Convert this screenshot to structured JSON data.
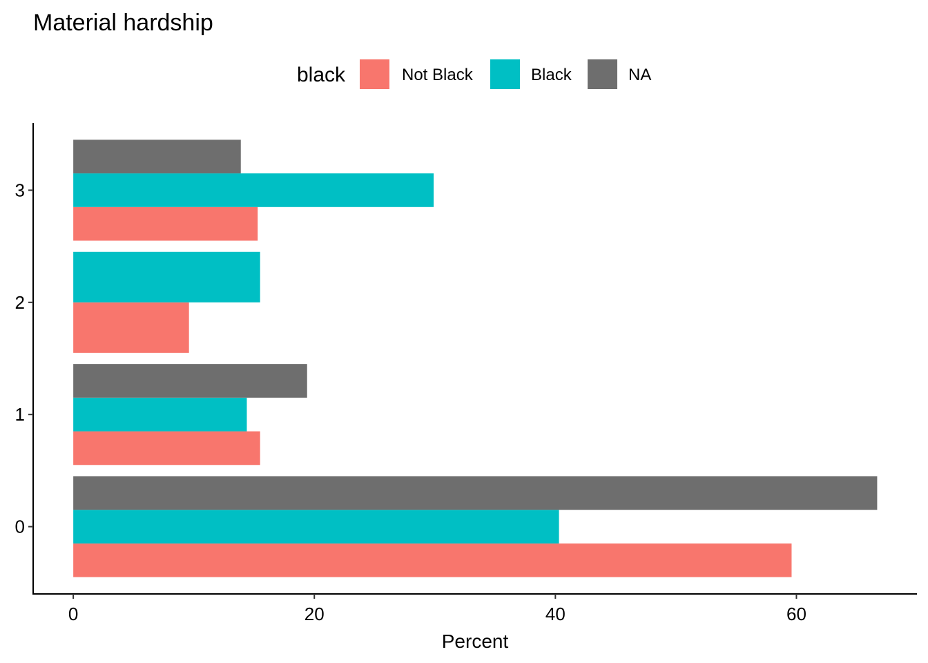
{
  "chart_data": {
    "type": "bar",
    "orientation": "horizontal",
    "title": "Material hardship",
    "xlabel": "Percent",
    "ylabel": "",
    "categories": [
      "0",
      "1",
      "2",
      "3"
    ],
    "series": [
      {
        "name": "Not Black",
        "color": "#F8766D",
        "values": [
          59.6,
          15.5,
          9.6,
          15.3
        ]
      },
      {
        "name": "Black",
        "color": "#00BFC4",
        "values": [
          40.3,
          14.4,
          15.5,
          29.9
        ]
      },
      {
        "name": "NA",
        "color": "#6E6E6E",
        "values": [
          66.7,
          19.4,
          null,
          13.9
        ]
      }
    ],
    "legend": {
      "title": "black",
      "position": "top"
    },
    "xlim": [
      -3.33,
      70.0
    ],
    "xticks": [
      "0",
      "20",
      "40",
      "60"
    ],
    "grid": false
  }
}
